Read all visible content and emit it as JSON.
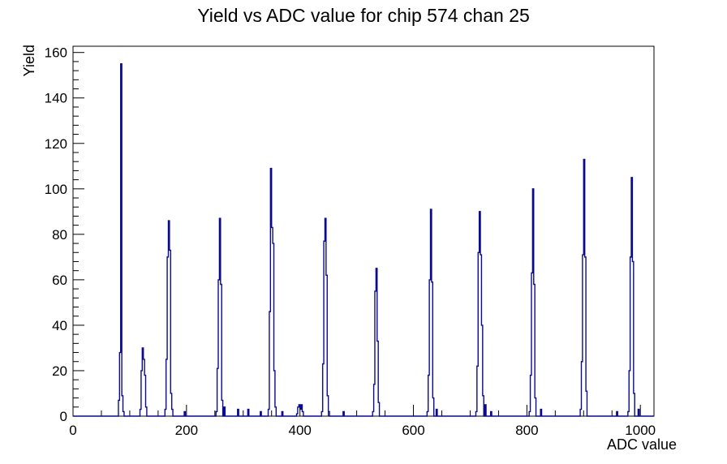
{
  "chart_data": {
    "type": "bar",
    "style": "root-step-histogram",
    "title": "Yield vs ADC value for chip 574 chan 25",
    "xlabel": "ADC value",
    "ylabel": "Yield",
    "xlim": [
      0,
      1024
    ],
    "ylim": [
      0,
      162.75
    ],
    "x_major_ticks": [
      0,
      200,
      400,
      600,
      800,
      1000
    ],
    "x_minor_step": 50,
    "y_major_ticks": [
      0,
      20,
      40,
      60,
      80,
      100,
      120,
      140,
      160
    ],
    "y_minor_step": 4,
    "grid": false,
    "legend": "none",
    "bin_width": 2,
    "line_color": "#0a0a8f",
    "frame_color": "#000000",
    "background_color": "#ffffff",
    "bins": [
      [
        80,
        7
      ],
      [
        82,
        28
      ],
      [
        84,
        155
      ],
      [
        86,
        9
      ],
      [
        88,
        2
      ],
      [
        118,
        3
      ],
      [
        120,
        20
      ],
      [
        122,
        30
      ],
      [
        124,
        25
      ],
      [
        126,
        18
      ],
      [
        128,
        4
      ],
      [
        162,
        3
      ],
      [
        164,
        25
      ],
      [
        166,
        70
      ],
      [
        168,
        86
      ],
      [
        170,
        73
      ],
      [
        172,
        10
      ],
      [
        174,
        3
      ],
      [
        196,
        2
      ],
      [
        252,
        2
      ],
      [
        254,
        21
      ],
      [
        256,
        60
      ],
      [
        258,
        87
      ],
      [
        260,
        58
      ],
      [
        262,
        7
      ],
      [
        266,
        4
      ],
      [
        290,
        3
      ],
      [
        308,
        3
      ],
      [
        330,
        2
      ],
      [
        344,
        3
      ],
      [
        346,
        46
      ],
      [
        348,
        109
      ],
      [
        350,
        83
      ],
      [
        352,
        76
      ],
      [
        354,
        20
      ],
      [
        356,
        4
      ],
      [
        368,
        2
      ],
      [
        394,
        1
      ],
      [
        396,
        4
      ],
      [
        398,
        5
      ],
      [
        400,
        3
      ],
      [
        402,
        5
      ],
      [
        404,
        2
      ],
      [
        438,
        2
      ],
      [
        440,
        23
      ],
      [
        442,
        77
      ],
      [
        444,
        87
      ],
      [
        446,
        62
      ],
      [
        448,
        9
      ],
      [
        450,
        2
      ],
      [
        476,
        2
      ],
      [
        528,
        2
      ],
      [
        530,
        14
      ],
      [
        532,
        55
      ],
      [
        534,
        65
      ],
      [
        536,
        33
      ],
      [
        538,
        6
      ],
      [
        624,
        2
      ],
      [
        626,
        18
      ],
      [
        628,
        60
      ],
      [
        630,
        91
      ],
      [
        632,
        59
      ],
      [
        634,
        8
      ],
      [
        640,
        3
      ],
      [
        710,
        2
      ],
      [
        712,
        22
      ],
      [
        714,
        72
      ],
      [
        716,
        90
      ],
      [
        718,
        71
      ],
      [
        720,
        40
      ],
      [
        722,
        9
      ],
      [
        726,
        5
      ],
      [
        736,
        2
      ],
      [
        804,
        2
      ],
      [
        806,
        18
      ],
      [
        808,
        63
      ],
      [
        810,
        100
      ],
      [
        812,
        58
      ],
      [
        814,
        8
      ],
      [
        824,
        3
      ],
      [
        894,
        3
      ],
      [
        896,
        24
      ],
      [
        898,
        71
      ],
      [
        900,
        113
      ],
      [
        902,
        70
      ],
      [
        904,
        11
      ],
      [
        958,
        2
      ],
      [
        978,
        2
      ],
      [
        980,
        20
      ],
      [
        982,
        70
      ],
      [
        984,
        105
      ],
      [
        986,
        68
      ],
      [
        988,
        10
      ],
      [
        996,
        3
      ]
    ]
  }
}
